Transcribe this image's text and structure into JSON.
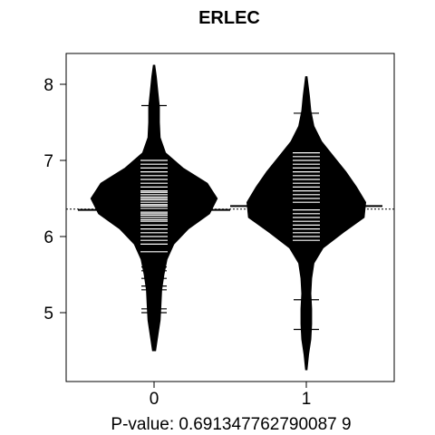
{
  "chart_data": {
    "type": "beanplot",
    "title": "ERLEC",
    "xlabel": "P-value: 0.691347762790087 9",
    "categories": [
      "0",
      "1"
    ],
    "yticks": [
      5,
      6,
      7,
      8
    ],
    "ylim": [
      4.2,
      8.4
    ],
    "overall_mean": 6.36,
    "series": [
      {
        "name": "0",
        "mean": 6.35,
        "density": [
          [
            4.5,
            0.02
          ],
          [
            4.7,
            0.05
          ],
          [
            4.9,
            0.08
          ],
          [
            5.1,
            0.09
          ],
          [
            5.3,
            0.1
          ],
          [
            5.5,
            0.13
          ],
          [
            5.7,
            0.17
          ],
          [
            5.9,
            0.26
          ],
          [
            6.1,
            0.45
          ],
          [
            6.3,
            0.73
          ],
          [
            6.5,
            0.83
          ],
          [
            6.7,
            0.7
          ],
          [
            6.9,
            0.38
          ],
          [
            7.1,
            0.15
          ],
          [
            7.3,
            0.08
          ],
          [
            7.5,
            0.07
          ],
          [
            7.7,
            0.07
          ],
          [
            7.9,
            0.05
          ],
          [
            8.1,
            0.03
          ],
          [
            8.25,
            0.01
          ]
        ],
        "points": [
          5.0,
          5.05,
          5.3,
          5.35,
          5.45,
          5.55,
          5.6,
          5.66,
          5.75,
          5.8,
          5.9,
          5.95,
          6.0,
          6.05,
          6.1,
          6.15,
          6.2,
          6.22,
          6.25,
          6.28,
          6.3,
          6.32,
          6.35,
          6.37,
          6.4,
          6.42,
          6.45,
          6.48,
          6.5,
          6.52,
          6.55,
          6.58,
          6.6,
          6.65,
          6.7,
          6.75,
          6.8,
          6.85,
          6.9,
          6.95,
          7.0,
          7.05,
          7.72
        ]
      },
      {
        "name": "1",
        "mean": 6.4,
        "density": [
          [
            4.25,
            0.01
          ],
          [
            4.45,
            0.03
          ],
          [
            4.65,
            0.06
          ],
          [
            4.85,
            0.07
          ],
          [
            5.05,
            0.07
          ],
          [
            5.25,
            0.06
          ],
          [
            5.45,
            0.07
          ],
          [
            5.65,
            0.1
          ],
          [
            5.85,
            0.22
          ],
          [
            6.05,
            0.48
          ],
          [
            6.25,
            0.76
          ],
          [
            6.45,
            0.78
          ],
          [
            6.65,
            0.66
          ],
          [
            6.85,
            0.52
          ],
          [
            7.05,
            0.36
          ],
          [
            7.25,
            0.2
          ],
          [
            7.45,
            0.1
          ],
          [
            7.65,
            0.06
          ],
          [
            7.85,
            0.04
          ],
          [
            8.1,
            0.01
          ]
        ],
        "points": [
          4.78,
          5.17,
          5.95,
          6.0,
          6.05,
          6.1,
          6.15,
          6.2,
          6.25,
          6.3,
          6.35,
          6.4,
          6.45,
          6.5,
          6.55,
          6.6,
          6.65,
          6.7,
          6.75,
          6.8,
          6.85,
          6.9,
          6.95,
          7.0,
          7.05,
          7.1,
          7.62
        ]
      }
    ]
  }
}
